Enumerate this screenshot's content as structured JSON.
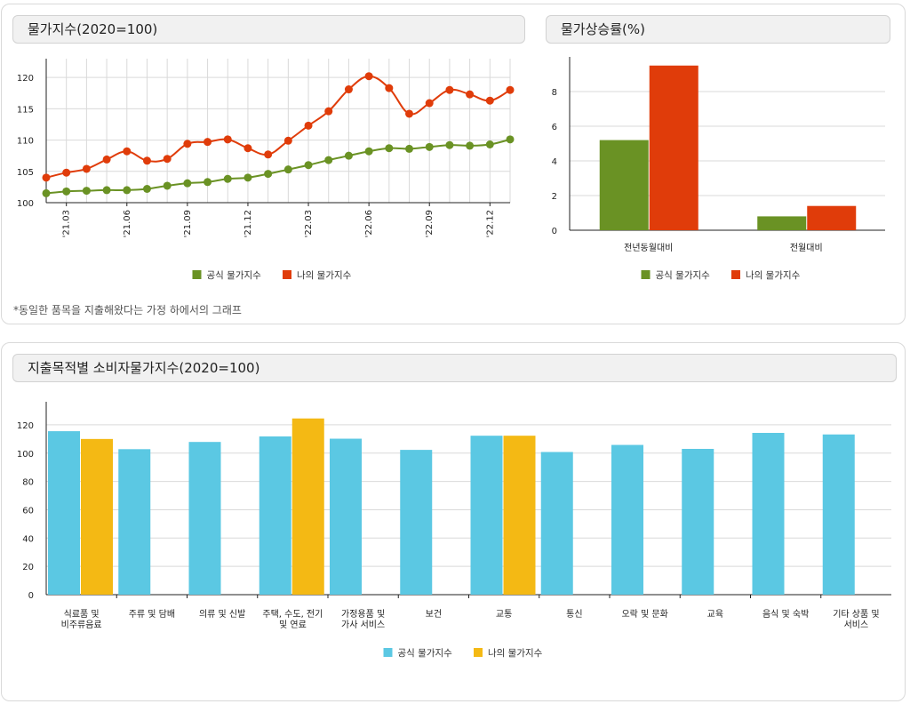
{
  "panels": {
    "index_title": "물가지수(2020=100)",
    "rate_title": "물가상승률(%)",
    "category_title": "지출목적별 소비자물가지수(2020=100)",
    "note": "*동일한 품목을 지출해왔다는 가정 하에서의 그래프"
  },
  "colors": {
    "official": "#6a9224",
    "mine": "#e03c0a",
    "cat_official": "#5bc8e3",
    "cat_mine": "#f4b914",
    "grid": "#d9d9d9"
  },
  "chart_data": [
    {
      "type": "line",
      "title": "물가지수(2020=100)",
      "ylim": [
        100,
        123
      ],
      "yticks": [
        100,
        105,
        110,
        115,
        120
      ],
      "x": [
        "'21.02",
        "'21.03",
        "'21.04",
        "'21.05",
        "'21.06",
        "'21.07",
        "'21.08",
        "'21.09",
        "'21.10",
        "'21.11",
        "'21.12",
        "'22.01",
        "'22.02",
        "'22.03",
        "'22.04",
        "'22.05",
        "'22.06",
        "'22.07",
        "'22.08",
        "'22.09",
        "'22.10",
        "'22.11",
        "'22.12",
        "'23.01"
      ],
      "xtick_labels": [
        "'21.03",
        "'21.06",
        "'21.09",
        "'21.12",
        "'22.03",
        "'22.06",
        "'22.09",
        "'22.12"
      ],
      "series": [
        {
          "name": "공식 물가지수",
          "values": [
            101.5,
            101.8,
            101.9,
            102.0,
            102.0,
            102.2,
            102.7,
            103.1,
            103.3,
            103.8,
            104.0,
            104.6,
            105.3,
            106.0,
            106.8,
            107.5,
            108.2,
            108.7,
            108.6,
            108.9,
            109.2,
            109.1,
            109.3,
            110.1
          ]
        },
        {
          "name": "나의 물가지수",
          "values": [
            104.0,
            104.8,
            105.4,
            106.9,
            108.2,
            106.7,
            107.0,
            109.4,
            109.7,
            110.1,
            108.7,
            107.7,
            109.9,
            112.3,
            114.6,
            118.1,
            120.2,
            118.3,
            114.2,
            115.9,
            118.0,
            117.3,
            116.3,
            118.0
          ]
        }
      ],
      "legend": [
        "공식 물가지수",
        "나의 물가지수"
      ]
    },
    {
      "type": "bar",
      "title": "물가상승률(%)",
      "ylim": [
        0,
        10
      ],
      "yticks": [
        0,
        2,
        4,
        6,
        8
      ],
      "categories": [
        "전년동월대비",
        "전월대비"
      ],
      "series": [
        {
          "name": "공식 물가지수",
          "values": [
            5.2,
            0.8
          ]
        },
        {
          "name": "나의 물가지수",
          "values": [
            9.5,
            1.4
          ]
        }
      ],
      "legend": [
        "공식 물가지수",
        "나의 물가지수"
      ]
    },
    {
      "type": "bar",
      "title": "지출목적별 소비자물가지수(2020=100)",
      "ylim": [
        0,
        130
      ],
      "yticks": [
        0,
        20,
        40,
        60,
        80,
        100,
        120
      ],
      "categories": [
        [
          "식료품 및",
          "비주류음료"
        ],
        [
          "주류 및 담배"
        ],
        [
          "의류 및 신발"
        ],
        [
          "주택, 수도, 전기",
          "및 연료"
        ],
        [
          "가정용품 및",
          "가사 서비스"
        ],
        [
          "보건"
        ],
        [
          "교통"
        ],
        [
          "통신"
        ],
        [
          "오락 및 문화"
        ],
        [
          "교육"
        ],
        [
          "음식 및 숙박"
        ],
        [
          "기타 상품 및",
          "서비스"
        ]
      ],
      "series": [
        {
          "name": "공식 물가지수",
          "values": [
            115.5,
            102.8,
            107.9,
            111.8,
            110.2,
            102.3,
            112.3,
            100.8,
            105.8,
            103.0,
            114.3,
            113.2
          ]
        },
        {
          "name": "나의 물가지수",
          "values": [
            110.0,
            null,
            null,
            124.5,
            null,
            null,
            112.3,
            null,
            null,
            null,
            null,
            null
          ]
        }
      ],
      "legend": [
        "공식 물가지수",
        "나의 물가지수"
      ]
    }
  ]
}
